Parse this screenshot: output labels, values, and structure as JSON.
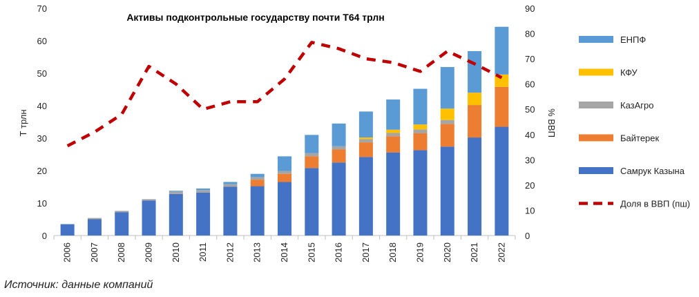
{
  "chart_data": {
    "type": "bar",
    "title": "Активы подконтрольные государству почти Т64 трлн",
    "ylabel": "Т трлн",
    "y2label": "% ВВП",
    "ylim": [
      0,
      70
    ],
    "y2lim": [
      0,
      90
    ],
    "yticks": [
      0,
      10,
      20,
      30,
      40,
      50,
      60,
      70
    ],
    "y2ticks": [
      0,
      10,
      20,
      30,
      40,
      50,
      60,
      70,
      80,
      90
    ],
    "categories": [
      "2006",
      "2007",
      "2008",
      "2009",
      "2010",
      "2011",
      "2012",
      "2013",
      "2014",
      "2015",
      "2016",
      "2017",
      "2018",
      "2019",
      "2020",
      "2021",
      "2022"
    ],
    "stacked": true,
    "series": [
      {
        "name": "Самрук Казына",
        "color": "#4472C4",
        "type": "bar",
        "values": [
          3.5,
          5.0,
          7.2,
          10.8,
          12.8,
          13.2,
          15.0,
          15.2,
          16.5,
          20.8,
          22.5,
          24.2,
          25.6,
          26.3,
          27.4,
          30.2,
          33.5
        ]
      },
      {
        "name": "Байтерек",
        "color": "#ED7D31",
        "type": "bar",
        "values": [
          0,
          0,
          0,
          0,
          0,
          0,
          0,
          2.0,
          2.5,
          3.6,
          4.0,
          4.5,
          5.0,
          5.2,
          7.0,
          10.0,
          12.3
        ]
      },
      {
        "name": "КазАгро",
        "color": "#A5A5A5",
        "type": "bar",
        "values": [
          0,
          0.4,
          0.4,
          0.4,
          0.8,
          0.8,
          0.8,
          0.8,
          0.9,
          1.0,
          1.0,
          1.0,
          1.0,
          1.2,
          1.2,
          0,
          0
        ]
      },
      {
        "name": "КФУ",
        "color": "#FFC000",
        "type": "bar",
        "values": [
          0,
          0,
          0,
          0,
          0,
          0,
          0,
          0,
          0,
          0,
          0,
          0.5,
          1.0,
          1.5,
          3.5,
          3.8,
          3.8
        ]
      },
      {
        "name": "ЕНПФ",
        "color": "#5B9BD5",
        "type": "bar",
        "values": [
          0,
          0,
          0,
          0,
          0.2,
          0.5,
          0.7,
          1.0,
          4.5,
          5.6,
          7.0,
          8.0,
          9.3,
          11.0,
          12.8,
          12.8,
          14.7
        ]
      },
      {
        "name": "Доля в ВВП (пш)",
        "color": "#C00000",
        "type": "line",
        "axis": "secondary",
        "values": [
          35.5,
          41.0,
          48.0,
          67.0,
          60.0,
          50.0,
          53.0,
          53.0,
          62.0,
          76.5,
          74.0,
          70.0,
          68.5,
          65.0,
          73.0,
          68.0,
          62.5
        ]
      }
    ],
    "legend": {
      "position": "right",
      "order": [
        "ЕНПФ",
        "КФУ",
        "КазАгро",
        "Байтерек",
        "Самрук Казына",
        "Доля в ВВП (пш)"
      ]
    },
    "grid": false
  },
  "source": "Источник: данные компаний"
}
